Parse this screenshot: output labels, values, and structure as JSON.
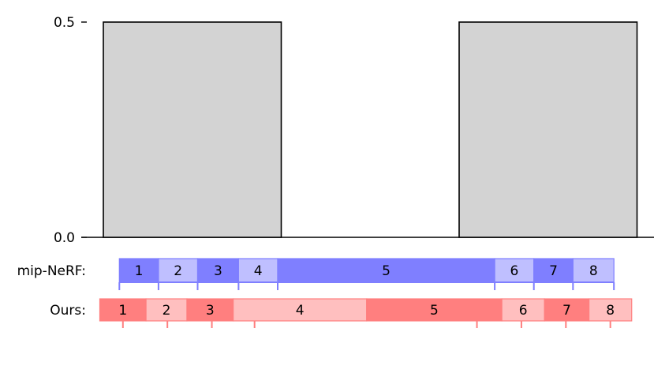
{
  "chart_data": {
    "type": "bar",
    "y_ticks": [
      "0.0",
      "0.5"
    ],
    "ylim": [
      0,
      0.5
    ],
    "bars": [
      {
        "x_start": 0.0,
        "x_end": 1.0,
        "value": 0.5
      },
      {
        "x_start": 2.0,
        "x_end": 3.0,
        "value": 0.5
      }
    ],
    "bar_color": "#d3d3d3",
    "interval_rows": [
      {
        "label": "mip-NeRF:",
        "color_dark": "#7f7fff",
        "color_light": "#bfbfff",
        "intervals": [
          {
            "label": "1",
            "start": 0.09,
            "end": 0.31
          },
          {
            "label": "2",
            "start": 0.31,
            "end": 0.53
          },
          {
            "label": "3",
            "start": 0.53,
            "end": 0.76
          },
          {
            "label": "4",
            "start": 0.76,
            "end": 0.98
          },
          {
            "label": "5",
            "start": 0.98,
            "end": 2.2
          },
          {
            "label": "6",
            "start": 2.2,
            "end": 2.42
          },
          {
            "label": "7",
            "start": 2.42,
            "end": 2.64
          },
          {
            "label": "8",
            "start": 2.64,
            "end": 2.87
          }
        ]
      },
      {
        "label": "Ours:",
        "color_dark": "#ff7f7f",
        "color_light": "#ffbfbf",
        "intervals": [
          {
            "label": "1",
            "start": -0.02,
            "end": 0.24
          },
          {
            "label": "2",
            "start": 0.24,
            "end": 0.47
          },
          {
            "label": "3",
            "start": 0.47,
            "end": 0.73
          },
          {
            "label": "4",
            "start": 0.73,
            "end": 1.48
          },
          {
            "label": "5",
            "start": 1.48,
            "end": 2.24
          },
          {
            "label": "6",
            "start": 2.24,
            "end": 2.48
          },
          {
            "label": "7",
            "start": 2.48,
            "end": 2.73
          },
          {
            "label": "8",
            "start": 2.73,
            "end": 2.97
          }
        ],
        "ticks": [
          0.11,
          0.36,
          0.61,
          0.85,
          2.1,
          2.35,
          2.6,
          2.85
        ]
      }
    ]
  }
}
